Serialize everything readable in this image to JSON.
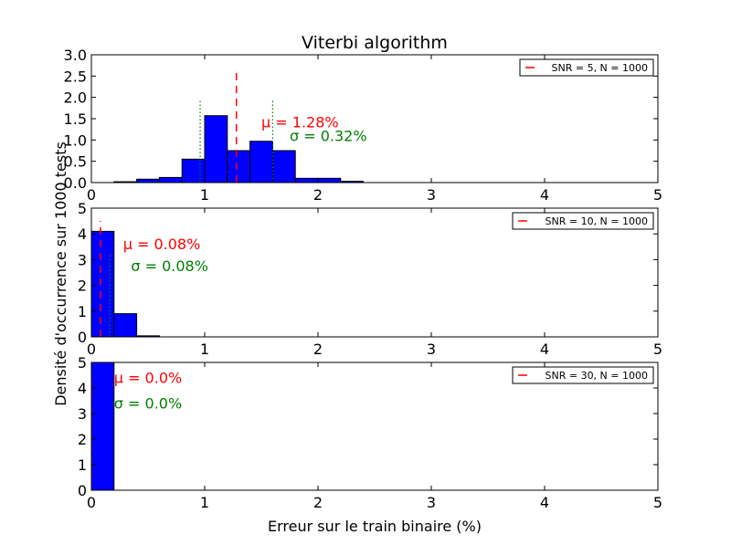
{
  "figure": {
    "title": "Viterbi algorithm",
    "xlabel": "Erreur sur le train binaire (%)",
    "ylabel": "Densité d'occurrence sur 1000 tests"
  },
  "chart_data": [
    {
      "type": "bar",
      "xlim": [
        0,
        5
      ],
      "ylim": [
        0,
        3.0
      ],
      "xticks": [
        "0",
        "1",
        "2",
        "3",
        "4",
        "5"
      ],
      "yticks": [
        "0.0",
        "0.5",
        "1.0",
        "1.5",
        "2.0",
        "2.5",
        "3.0"
      ],
      "bin_width": 0.2,
      "bins": [
        {
          "x0": 0.0,
          "value": 0.0
        },
        {
          "x0": 0.2,
          "value": 0.02
        },
        {
          "x0": 0.4,
          "value": 0.08
        },
        {
          "x0": 0.6,
          "value": 0.12
        },
        {
          "x0": 0.8,
          "value": 0.55
        },
        {
          "x0": 1.0,
          "value": 1.57
        },
        {
          "x0": 1.2,
          "value": 0.75
        },
        {
          "x0": 1.4,
          "value": 0.97
        },
        {
          "x0": 1.6,
          "value": 0.75
        },
        {
          "x0": 1.8,
          "value": 0.1
        },
        {
          "x0": 2.0,
          "value": 0.1
        },
        {
          "x0": 2.2,
          "value": 0.03
        }
      ],
      "mean": 1.28,
      "std": 0.32,
      "mean_label": "μ = 1.28%",
      "std_label": "σ = 0.32%",
      "mean_label_pos": [
        1.5,
        1.3
      ],
      "std_label_pos": [
        1.75,
        0.98
      ],
      "legend": "SNR = 5, N = 1000",
      "legend_loc": "upper right",
      "colors": {
        "bar": "#0000ff",
        "mean": "#ff0000",
        "std": "#008000"
      }
    },
    {
      "type": "bar",
      "xlim": [
        0,
        5
      ],
      "ylim": [
        0,
        5
      ],
      "xticks": [
        "0",
        "1",
        "2",
        "3",
        "4",
        "5"
      ],
      "yticks": [
        "0",
        "1",
        "2",
        "3",
        "4",
        "5"
      ],
      "bin_width": 0.2,
      "bins": [
        {
          "x0": 0.0,
          "value": 4.1
        },
        {
          "x0": 0.2,
          "value": 0.9
        },
        {
          "x0": 0.4,
          "value": 0.04
        }
      ],
      "mean": 0.08,
      "std": 0.08,
      "mean_label": "μ = 0.08%",
      "std_label": "σ = 0.08%",
      "mean_label_pos": [
        0.28,
        3.4
      ],
      "std_label_pos": [
        0.35,
        2.55
      ],
      "legend": "SNR = 10, N = 1000",
      "legend_loc": "upper right",
      "colors": {
        "bar": "#0000ff",
        "mean": "#ff0000",
        "std": "#008000"
      }
    },
    {
      "type": "bar",
      "xlim": [
        0,
        5
      ],
      "ylim": [
        0,
        5
      ],
      "xticks": [
        "0",
        "1",
        "2",
        "3",
        "4",
        "5"
      ],
      "yticks": [
        "0",
        "1",
        "2",
        "3",
        "4",
        "5"
      ],
      "bin_width": 0.2,
      "bins": [
        {
          "x0": 0.0,
          "value": 5.0
        }
      ],
      "mean": 0.0,
      "std": 0.0,
      "mean_label": "μ = 0.0%",
      "std_label": "σ = 0.0%",
      "mean_label_pos": [
        0.2,
        4.2
      ],
      "std_label_pos": [
        0.2,
        3.2
      ],
      "legend": "SNR = 30, N = 1000",
      "legend_loc": "upper right",
      "colors": {
        "bar": "#0000ff",
        "mean": "#ff0000",
        "std": "#008000"
      }
    }
  ]
}
